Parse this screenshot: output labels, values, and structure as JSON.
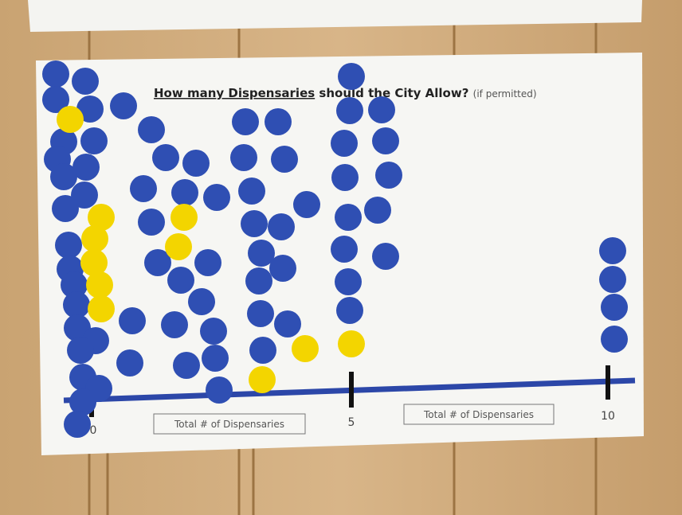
{
  "poster": {
    "title_underlined": "How many Dispensaries",
    "title_rest": "should the City Allow?",
    "title_note": "(if permitted)",
    "axis_labels": [
      "0",
      "5",
      "10"
    ],
    "axis_boxes": [
      "Total # of Dispensaries",
      "Total # of Dispensaries"
    ]
  }
}
